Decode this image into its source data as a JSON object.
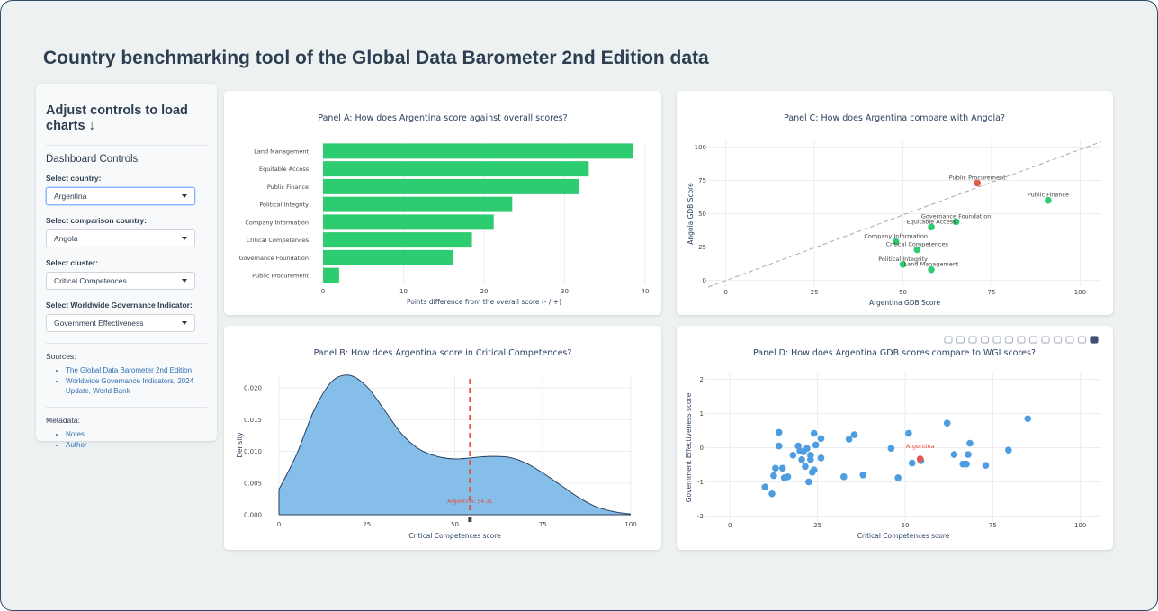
{
  "page": {
    "title": "Country benchmarking tool of the Global Data Barometer 2nd Edition data"
  },
  "sidebar": {
    "heading": "Adjust controls to load charts ↓",
    "subheading": "Dashboard Controls",
    "controls": [
      {
        "label": "Select country:",
        "value": "Argentina"
      },
      {
        "label": "Select comparison country:",
        "value": "Angola"
      },
      {
        "label": "Select cluster:",
        "value": "Critical Competences"
      },
      {
        "label": "Select Worldwide Governance Indicator:",
        "value": "Government Effectiveness"
      }
    ],
    "sources_label": "Sources:",
    "sources": [
      "The Global Data Barometer 2nd Edition",
      "Worldwide Governance Indicators, 2024 Update, World Bank"
    ],
    "metadata_label": "Metadata:",
    "metadata": [
      "Notes",
      "Author"
    ]
  },
  "colors": {
    "bar": "#2ecc71",
    "density": "#85bfe9",
    "scatter": "#4e9de0",
    "highlight": "#e05b4b",
    "marker_line": "#e74c3c"
  },
  "toolbar_icons": [
    "camera-icon",
    "zoom-icon",
    "pan-icon",
    "box-select-icon",
    "lasso-icon",
    "zoom-in-icon",
    "zoom-out-icon",
    "autoscale-icon",
    "home-icon",
    "spike-icon",
    "hover-closest-icon",
    "hover-compare-icon",
    "plotly-logo-icon"
  ],
  "chart_data": [
    {
      "type": "bar",
      "orientation": "horizontal",
      "title": "Panel A: How does Argentina score against overall scores?",
      "xlabel": "Points difference from the overall score (- / +)",
      "categories": [
        "Land Management",
        "Equitable Access",
        "Public Finance",
        "Political Integrity",
        "Company Information",
        "Critical Competences",
        "Governance Foundation",
        "Public Procurement"
      ],
      "values": [
        38.5,
        33,
        31.8,
        23.5,
        21.2,
        18.5,
        16.2,
        2
      ],
      "xlim": [
        0,
        40
      ],
      "xticks": [
        0,
        10,
        20,
        30,
        40
      ]
    },
    {
      "type": "area",
      "title": "Panel B: How does Argentina score in Critical Competences?",
      "xlabel": "Critical Competences score",
      "ylabel": "Density",
      "x": [
        0,
        5,
        10,
        15,
        20,
        25,
        30,
        35,
        40,
        45,
        50,
        55,
        60,
        65,
        70,
        75,
        80,
        85,
        90,
        95,
        100
      ],
      "y": [
        0.004,
        0.0095,
        0.0165,
        0.021,
        0.022,
        0.0202,
        0.0165,
        0.0127,
        0.0103,
        0.0092,
        0.0088,
        0.009,
        0.0092,
        0.0091,
        0.0082,
        0.0066,
        0.0047,
        0.0028,
        0.0013,
        0.0005,
        0.0001
      ],
      "xlim": [
        0,
        100
      ],
      "ylim": [
        0,
        0.022
      ],
      "xticks": [
        0,
        25,
        50,
        75,
        100
      ],
      "yticks": [
        0,
        0.005,
        0.01,
        0.015,
        0.02
      ],
      "ytick_labels": [
        "0.000",
        "0.005",
        "0.010",
        "0.015",
        "0.020"
      ],
      "marker": {
        "x": 54.31,
        "label": "Argentina: 54.31"
      }
    },
    {
      "type": "scatter",
      "title": "Panel C: How does Argentina compare with Angola?",
      "xlabel": "Argentina GDB Score",
      "ylabel": "Angola GDB Score",
      "xlim": [
        -5,
        106
      ],
      "ylim": [
        -5,
        105
      ],
      "xticks": [
        0,
        25,
        50,
        75,
        100
      ],
      "yticks": [
        0,
        25,
        50,
        75,
        100
      ],
      "diagonal": true,
      "points": [
        {
          "label": "Public Procurement",
          "x": 71,
          "y": 73,
          "highlight": true
        },
        {
          "label": "Public Finance",
          "x": 91,
          "y": 60
        },
        {
          "label": "Governance Foundation",
          "x": 65,
          "y": 44
        },
        {
          "label": "Equitable Access",
          "x": 58,
          "y": 40
        },
        {
          "label": "Company Information",
          "x": 48,
          "y": 29
        },
        {
          "label": "Critical Competences",
          "x": 54,
          "y": 23
        },
        {
          "label": "Political Integrity",
          "x": 50,
          "y": 12
        },
        {
          "label": "Land Management",
          "x": 58,
          "y": 8
        }
      ]
    },
    {
      "type": "scatter",
      "title": "Panel D: How does Argentina GDB scores compare to WGI scores?",
      "xlabel": "Critical Competences score",
      "ylabel": "Government Effectiveness score",
      "xlim": [
        -7,
        106
      ],
      "ylim": [
        -2.2,
        2.2
      ],
      "xticks": [
        0,
        25,
        50,
        75,
        100
      ],
      "yticks": [
        -2,
        -1,
        0,
        1,
        2
      ],
      "highlight": {
        "label": "Argentina",
        "x": 54.3,
        "y": -0.33
      },
      "points": [
        [
          10,
          -1.15
        ],
        [
          12,
          -1.35
        ],
        [
          12.5,
          -0.82
        ],
        [
          13,
          -0.6
        ],
        [
          14,
          0.05
        ],
        [
          14,
          0.45
        ],
        [
          15,
          -0.6
        ],
        [
          15.5,
          -0.88
        ],
        [
          16.5,
          -0.85
        ],
        [
          18,
          -0.22
        ],
        [
          19.5,
          0.05
        ],
        [
          20,
          -0.1
        ],
        [
          20.5,
          -0.35
        ],
        [
          21,
          -0.12
        ],
        [
          21.5,
          -0.55
        ],
        [
          22,
          -0.02
        ],
        [
          22.5,
          -1.0
        ],
        [
          23,
          -0.35
        ],
        [
          23,
          -0.22
        ],
        [
          23.5,
          -0.72
        ],
        [
          24,
          0.42
        ],
        [
          24,
          -0.65
        ],
        [
          24.5,
          0.08
        ],
        [
          26,
          0.27
        ],
        [
          26,
          -0.3
        ],
        [
          32.5,
          -0.85
        ],
        [
          34,
          0.25
        ],
        [
          35.5,
          0.38
        ],
        [
          38,
          -0.8
        ],
        [
          46,
          -0.02
        ],
        [
          48,
          -0.88
        ],
        [
          51,
          0.42
        ],
        [
          52,
          -0.45
        ],
        [
          54.5,
          -0.38
        ],
        [
          62,
          0.72
        ],
        [
          64,
          -0.2
        ],
        [
          66.5,
          -0.48
        ],
        [
          67.5,
          -0.48
        ],
        [
          68,
          -0.2
        ],
        [
          68.5,
          0.13
        ],
        [
          73,
          -0.52
        ],
        [
          79.5,
          -0.07
        ],
        [
          85,
          0.85
        ]
      ]
    }
  ]
}
